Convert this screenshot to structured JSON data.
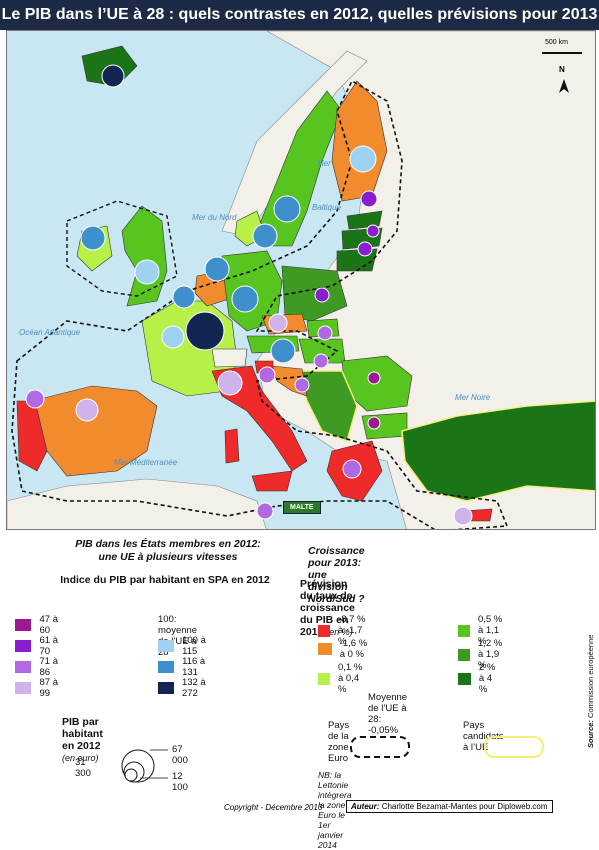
{
  "title": "Le PIB dans l’UE à 28 :  quels contrastes en 2012, quelles prévisions pour 2013 ?",
  "map": {
    "sea_labels": [
      "Mer du Nord",
      "Océan Atlantique",
      "Mer Méditerranée",
      "Mer Noire",
      "Mer",
      "Baltique"
    ],
    "scale_label": "500 km",
    "north_label": "N",
    "malta_label": "MALTE"
  },
  "legend_left": {
    "heading_line1": "PIB dans les États membres en 2012:",
    "heading_line2": "une UE à plusieurs vitesses",
    "subheading": "Indice du PIB par habitant en SPA en 2012",
    "index_classes": [
      {
        "label": "47 à 60",
        "color": "#9b1a8f"
      },
      {
        "label": "61 à 70",
        "color": "#8b1dd1"
      },
      {
        "label": "71 à 86",
        "color": "#b168e3"
      },
      {
        "label": "87 à 99",
        "color": "#cfb4ec"
      },
      {
        "label": "100 à 115",
        "color": "#9fd1f3"
      },
      {
        "label": "116 à 131",
        "color": "#3f8fcc"
      },
      {
        "label": "132 à 272",
        "color": "#132652"
      }
    ],
    "average_note": "100: moyenne de l’UE à 28",
    "circle_heading": "PIB par habitant en 2012",
    "circle_unit": "(en euro)",
    "circle_values": [
      "67 000",
      "31 300",
      "12 100"
    ]
  },
  "legend_right": {
    "heading": "Croissance pour 2013: une division Nord/Sud ?",
    "subheading": "Prévision du taux de croissance du PIB en 2013",
    "subheading_unit": "(en %)",
    "growth_classes": [
      {
        "label": "-8,7 % à -1,7 %",
        "color": "#ee2a2a"
      },
      {
        "label": "0,5 % à 1,1 %",
        "color": "#58c41f"
      },
      {
        "label": "-1,6 % à 0 %",
        "color": "#f28a2e"
      },
      {
        "label": "1,2  % à 1,9 %",
        "color": "#3e9a22"
      },
      {
        "label": "0,1 % à 0,4 %",
        "color": "#b8f04a"
      },
      {
        "label": "2 % à 4 %",
        "color": "#1b7418"
      }
    ],
    "average": "Moyenne de l’UE à 28: -0,05%",
    "zone_euro": "Pays de la zone Euro",
    "candidates": "Pays candidats à l’UE",
    "note": "NB: la Lettonie intègrera la zone Euro le 1er janvier 2014",
    "source_label": "Source:",
    "source_value": "Commission européenne"
  },
  "footer": {
    "copyright": "Copyright - Décembre 2013",
    "author_label": "Auteur:",
    "author_value": "Charlotte Bezamat-Mantes pour Diploweb.com"
  }
}
